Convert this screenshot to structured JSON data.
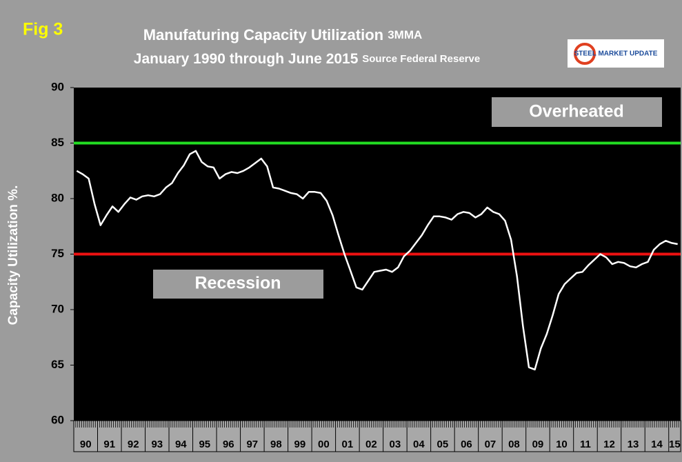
{
  "chart_data": {
    "type": "line",
    "fig_label": "Fig 3",
    "title": "Manufaturing Capacity Utilization",
    "title_note": "3MMA",
    "subtitle": "January 1990 through June 2015",
    "source": "Source Federal Reserve",
    "logo": "STEEL MARKET UPDATE",
    "y_label": "Capacity Utilization %.",
    "categories": [
      "90",
      null,
      null,
      null,
      "91",
      null,
      null,
      null,
      "92",
      null,
      null,
      null,
      "93",
      null,
      null,
      null,
      "94",
      null,
      null,
      null,
      "95",
      null,
      null,
      null,
      "96",
      null,
      null,
      null,
      "97",
      null,
      null,
      null,
      "98",
      null,
      null,
      null,
      "99",
      null,
      null,
      null,
      "00",
      null,
      null,
      null,
      "01",
      null,
      null,
      null,
      "02",
      null,
      null,
      null,
      "03",
      null,
      null,
      null,
      "04",
      null,
      null,
      null,
      "05",
      null,
      null,
      null,
      "06",
      null,
      null,
      null,
      "07",
      null,
      null,
      null,
      "08",
      null,
      null,
      null,
      "09",
      null,
      null,
      null,
      "10",
      null,
      null,
      null,
      "11",
      null,
      null,
      null,
      "12",
      null,
      null,
      null,
      "13",
      null,
      null,
      null,
      "14",
      null,
      null,
      null,
      "15",
      null
    ],
    "series": [
      {
        "name": "Capacity Utilization",
        "color": "#ffffff",
        "values": [
          82.5,
          82.2,
          81.8,
          79.5,
          77.6,
          78.5,
          79.3,
          78.8,
          79.5,
          80.1,
          79.9,
          80.2,
          80.3,
          80.2,
          80.4,
          81.0,
          81.4,
          82.3,
          83.0,
          84.0,
          84.3,
          83.3,
          82.9,
          82.8,
          81.8,
          82.2,
          82.4,
          82.3,
          82.5,
          82.8,
          83.2,
          83.6,
          82.9,
          81.0,
          80.9,
          80.7,
          80.5,
          80.4,
          80.0,
          80.6,
          80.6,
          80.5,
          79.8,
          78.5,
          76.7,
          75.0,
          73.5,
          72.0,
          71.8,
          72.6,
          73.4,
          73.5,
          73.6,
          73.4,
          73.8,
          74.8,
          75.3,
          76.0,
          76.7,
          77.6,
          78.4,
          78.4,
          78.3,
          78.1,
          78.6,
          78.8,
          78.7,
          78.3,
          78.6,
          79.2,
          78.8,
          78.6,
          78.0,
          76.3,
          73.0,
          68.5,
          64.8,
          64.6,
          66.5,
          67.8,
          69.5,
          71.4,
          72.3,
          72.8,
          73.3,
          73.4,
          74.0,
          74.5,
          75.0,
          74.7,
          74.1,
          74.3,
          74.2,
          73.9,
          73.8,
          74.1,
          74.3,
          75.4,
          75.9,
          76.2,
          76.0,
          75.9
        ]
      }
    ],
    "ylim": [
      60,
      90
    ],
    "yticks": [
      60,
      65,
      70,
      75,
      80,
      85,
      90
    ],
    "reference_lines": [
      {
        "value": 85,
        "color": "#22dd22"
      },
      {
        "value": 75,
        "color": "#ee1111"
      }
    ],
    "annotations": [
      "Overheated",
      "Recession"
    ]
  }
}
